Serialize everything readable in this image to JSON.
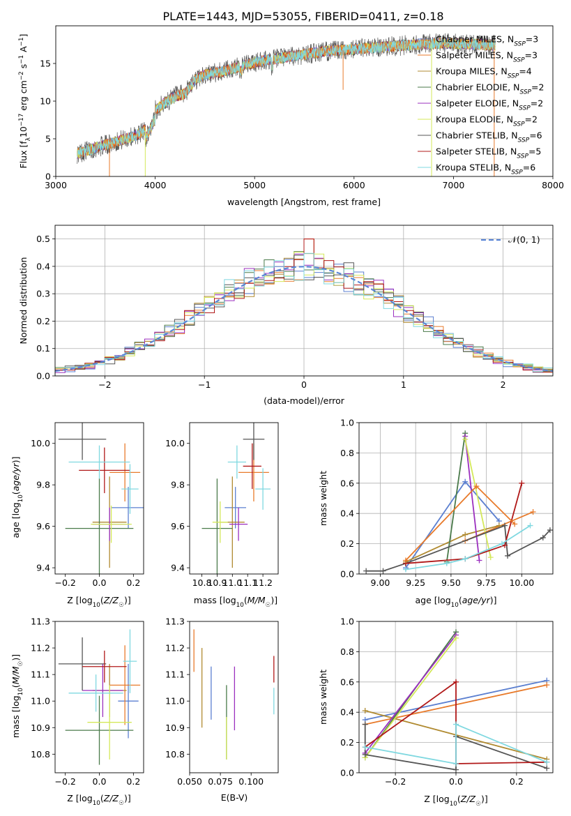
{
  "figure": {
    "title": "PLATE=1443, MJD=53055, FIBERID=0411, z=0.18"
  },
  "colors": {
    "Chabrier MILES": "#5b7fd0",
    "Salpeter MILES": "#e87a2a",
    "Kroupa MILES": "#b08a30",
    "Chabrier ELODIE": "#4a7a4a",
    "Salpeter ELODIE": "#9b2fbf",
    "Kroupa ELODIE": "#d4e85a",
    "Chabrier STELIB": "#555555",
    "Salpeter STELIB": "#b01818",
    "Kroupa STELIB": "#7fd8e0"
  },
  "models": [
    {
      "name": "Chabrier MILES",
      "nssp": 3,
      "label_pre": "Chabrier MILES, N",
      "label_post": "=3"
    },
    {
      "name": "Salpeter MILES",
      "nssp": 3,
      "label_pre": "Salpeter MILES, N",
      "label_post": "=3"
    },
    {
      "name": "Kroupa MILES",
      "nssp": 4,
      "label_pre": "Kroupa MILES, N",
      "label_post": "=4"
    },
    {
      "name": "Chabrier ELODIE",
      "nssp": 2,
      "label_pre": "Chabrier ELODIE, N",
      "label_post": "=2"
    },
    {
      "name": "Salpeter ELODIE",
      "nssp": 2,
      "label_pre": "Salpeter ELODIE, N",
      "label_post": "=2"
    },
    {
      "name": "Kroupa ELODIE",
      "nssp": 2,
      "label_pre": "Kroupa ELODIE, N",
      "label_post": "=2"
    },
    {
      "name": "Chabrier STELIB",
      "nssp": 6,
      "label_pre": "Chabrier STELIB, N",
      "label_post": "=6"
    },
    {
      "name": "Salpeter STELIB",
      "nssp": 5,
      "label_pre": "Salpeter STELIB, N",
      "label_post": "=5"
    },
    {
      "name": "Kroupa STELIB",
      "nssp": 6,
      "label_pre": "Kroupa STELIB, N",
      "label_post": "=6"
    }
  ],
  "chart_data": [
    {
      "id": "spectrum",
      "type": "line",
      "xlabel": "wavelength [Angstrom, rest frame]",
      "ylabel": "Flux [f_λ 10^-17 erg cm^-2 s^-1 A^-1]",
      "xlim": [
        3000,
        8000
      ],
      "ylim": [
        0,
        20
      ],
      "xticks": [
        3000,
        4000,
        5000,
        6000,
        7000,
        8000
      ],
      "yticks": [
        0,
        5,
        10,
        15
      ],
      "legend": "right",
      "grid": false,
      "continuum": {
        "x": [
          3210,
          3300,
          3400,
          3500,
          3600,
          3700,
          3800,
          3900,
          3950,
          4000,
          4100,
          4200,
          4300,
          4400,
          4500,
          4700,
          4900,
          5100,
          5300,
          5500,
          5700,
          5900,
          6100,
          6300,
          6500,
          6700,
          6900,
          7100,
          7300,
          7420
        ],
        "y": [
          3.0,
          3.4,
          3.8,
          4.2,
          4.6,
          5.0,
          5.4,
          6.2,
          7.5,
          8.8,
          9.8,
          10.6,
          11.0,
          12.8,
          13.5,
          14.0,
          14.8,
          15.4,
          15.8,
          16.2,
          16.6,
          16.8,
          17.0,
          17.2,
          17.4,
          17.6,
          17.7,
          17.6,
          17.5,
          17.4
        ]
      },
      "dips": [
        {
          "x": 3540,
          "y": 0,
          "series": "Salpeter MILES"
        },
        {
          "x": 3900,
          "y": 0,
          "series": "Kroupa ELODIE"
        },
        {
          "x": 5890,
          "y": 11.5,
          "series": "Salpeter MILES"
        },
        {
          "x": 6780,
          "y": 0,
          "series": "Kroupa ELODIE"
        },
        {
          "x": 7410,
          "y": 0,
          "series": "Salpeter MILES"
        }
      ]
    },
    {
      "id": "residuals",
      "type": "histogram",
      "xlabel": "(data-model)/error",
      "ylabel": "Normed distribution",
      "xlim": [
        -2.5,
        2.5
      ],
      "ylim": [
        0,
        0.55
      ],
      "xticks": [
        -2,
        -1,
        0,
        1,
        2
      ],
      "yticks": [
        0.0,
        0.1,
        0.2,
        0.3,
        0.4,
        0.5
      ],
      "grid": true,
      "legend": "top-right",
      "reference": {
        "name": "N(0,1)",
        "label": "𝒩(0, 1)",
        "mean": 0,
        "sigma": 1
      }
    },
    {
      "id": "age_vs_Z",
      "type": "errorbar",
      "xlabel": "Z [log10(Z/Z☉)]",
      "ylabel": "age [log10(age/yr)]",
      "xlim": [
        -0.26,
        0.26
      ],
      "ylim": [
        9.37,
        10.1
      ],
      "xticks": [
        -0.2,
        0.0,
        0.2
      ],
      "yticks": [
        9.4,
        9.6,
        9.8,
        10.0
      ],
      "points": [
        {
          "series": "Chabrier MILES",
          "x": 0.17,
          "y": 9.69,
          "xerr": 0.1,
          "yerr": 0.1
        },
        {
          "series": "Salpeter MILES",
          "x": 0.15,
          "y": 9.86,
          "xerr": 0.09,
          "yerr": 0.14
        },
        {
          "series": "Kroupa MILES",
          "x": 0.06,
          "y": 9.62,
          "xerr": 0.1,
          "yerr": 0.22
        },
        {
          "series": "Chabrier ELODIE",
          "x": 0.0,
          "y": 9.59,
          "xerr": 0.2,
          "yerr": 0.24
        },
        {
          "series": "Salpeter ELODIE",
          "x": 0.06,
          "y": 9.61,
          "xerr": 0.1,
          "yerr": 0.08
        },
        {
          "series": "Kroupa ELODIE",
          "x": 0.07,
          "y": 9.61,
          "xerr": 0.12,
          "yerr": 0.09
        },
        {
          "series": "Chabrier STELIB",
          "x": -0.1,
          "y": 10.02,
          "xerr": 0.14,
          "yerr": 0.1
        },
        {
          "series": "Salpeter STELIB",
          "x": 0.03,
          "y": 9.87,
          "xerr": 0.15,
          "yerr": 0.11
        },
        {
          "series": "Kroupa STELIB",
          "x": 0.0,
          "y": 9.91,
          "xerr": 0.18,
          "yerr": 0.08
        },
        {
          "series": "Kroupa STELIB",
          "x": 0.18,
          "y": 9.78,
          "xerr": 0.05,
          "yerr": 0.12
        }
      ]
    },
    {
      "id": "age_vs_mass",
      "type": "errorbar",
      "xlabel": "mass [log10(M/M☉)]",
      "ylabel": "",
      "xlim": [
        10.72,
        11.3
      ],
      "ylim": [
        9.37,
        10.1
      ],
      "xticks": [
        10.8,
        10.9,
        11.0,
        11.1,
        11.2
      ],
      "yticks": [
        9.4,
        9.6,
        9.8,
        10.0
      ],
      "points": [
        {
          "series": "Chabrier MILES",
          "x": 11.02,
          "y": 9.69,
          "xerr": 0.07,
          "yerr": 0.1
        },
        {
          "series": "Salpeter MILES",
          "x": 11.14,
          "y": 9.86,
          "xerr": 0.1,
          "yerr": 0.14
        },
        {
          "series": "Kroupa MILES",
          "x": 11.0,
          "y": 9.62,
          "xerr": 0.08,
          "yerr": 0.22
        },
        {
          "series": "Chabrier ELODIE",
          "x": 10.9,
          "y": 9.59,
          "xerr": 0.1,
          "yerr": 0.24
        },
        {
          "series": "Salpeter ELODIE",
          "x": 11.04,
          "y": 9.61,
          "xerr": 0.06,
          "yerr": 0.08
        },
        {
          "series": "Kroupa ELODIE",
          "x": 10.92,
          "y": 9.62,
          "xerr": 0.05,
          "yerr": 0.1
        },
        {
          "series": "Chabrier STELIB",
          "x": 11.14,
          "y": 10.02,
          "xerr": 0.07,
          "yerr": 0.1
        },
        {
          "series": "Salpeter STELIB",
          "x": 11.13,
          "y": 9.89,
          "xerr": 0.06,
          "yerr": 0.11
        },
        {
          "series": "Kroupa STELIB",
          "x": 11.03,
          "y": 9.91,
          "xerr": 0.06,
          "yerr": 0.08
        },
        {
          "series": "Kroupa STELIB",
          "x": 11.2,
          "y": 9.78,
          "xerr": 0.05,
          "yerr": 0.1
        }
      ]
    },
    {
      "id": "weight_vs_age",
      "type": "line",
      "xlabel": "age [log10(age/yr)]",
      "ylabel": "mass weight",
      "xlim": [
        8.85,
        10.22
      ],
      "ylim": [
        0,
        1.0
      ],
      "xticks": [
        9.0,
        9.25,
        9.5,
        9.75,
        10.0
      ],
      "yticks": [
        0.0,
        0.2,
        0.4,
        0.6,
        0.8,
        1.0
      ],
      "grid": true,
      "series": [
        {
          "name": "Chabrier MILES",
          "x": [
            9.18,
            9.6,
            9.84
          ],
          "y": [
            0.04,
            0.61,
            0.35
          ]
        },
        {
          "name": "Salpeter MILES",
          "x": [
            9.6,
            10.08
          ],
          "y": [
            0.22,
            0.41
          ]
        },
        {
          "name": "Kroupa MILES",
          "x": [
            9.18,
            9.6,
            9.84
          ],
          "y": [
            0.08,
            0.26,
            0.32
          ]
        },
        {
          "name": "Chabrier ELODIE",
          "x": [
            9.47,
            9.6
          ],
          "y": [
            0.08,
            0.93
          ]
        },
        {
          "name": "Salpeter ELODIE",
          "x": [
            9.6,
            9.7
          ],
          "y": [
            0.91,
            0.09
          ]
        },
        {
          "name": "Kroupa ELODIE",
          "x": [
            9.6,
            9.78
          ],
          "y": [
            0.89,
            0.11
          ]
        },
        {
          "name": "Chabrier STELIB",
          "x": [
            8.9,
            9.02,
            9.18,
            9.88,
            9.9,
            10.15,
            10.2
          ],
          "y": [
            0.02,
            0.02,
            0.07,
            0.32,
            0.12,
            0.24,
            0.29
          ]
        },
        {
          "name": "Salpeter STELIB",
          "x": [
            9.18,
            9.6,
            9.88,
            10.0
          ],
          "y": [
            0.07,
            0.1,
            0.19,
            0.6
          ]
        },
        {
          "name": "Kroupa STELIB",
          "x": [
            9.18,
            9.47,
            9.6,
            9.86,
            10.06
          ],
          "y": [
            0.03,
            0.07,
            0.1,
            0.2,
            0.32
          ]
        },
        {
          "name": "Salpeter MILES",
          "x": [
            9.18,
            9.68,
            9.95
          ],
          "y": [
            0.09,
            0.58,
            0.33
          ]
        }
      ]
    },
    {
      "id": "mass_vs_Z",
      "type": "errorbar",
      "xlabel": "Z [log10(Z/Z☉)]",
      "ylabel": "mass [log10(M/M☉)]",
      "xlim": [
        -0.26,
        0.26
      ],
      "ylim": [
        10.73,
        11.3
      ],
      "xticks": [
        -0.2,
        0.0,
        0.2
      ],
      "yticks": [
        10.8,
        10.9,
        11.0,
        11.1,
        11.2,
        11.3
      ],
      "points": [
        {
          "series": "Chabrier MILES",
          "x": 0.17,
          "y": 11.0,
          "xerr": 0.06,
          "yerr": 0.14
        },
        {
          "series": "Salpeter MILES",
          "x": 0.15,
          "y": 11.06,
          "xerr": 0.09,
          "yerr": 0.15
        },
        {
          "series": "Kroupa MILES",
          "x": 0.06,
          "y": 11.04,
          "xerr": 0.1,
          "yerr": 0.1
        },
        {
          "series": "Chabrier ELODIE",
          "x": 0.0,
          "y": 10.89,
          "xerr": 0.2,
          "yerr": 0.13
        },
        {
          "series": "Salpeter ELODIE",
          "x": 0.02,
          "y": 11.04,
          "xerr": 0.12,
          "yerr": 0.1
        },
        {
          "series": "Kroupa ELODIE",
          "x": 0.06,
          "y": 10.92,
          "xerr": 0.13,
          "yerr": 0.14
        },
        {
          "series": "Chabrier STELIB",
          "x": -0.1,
          "y": 11.14,
          "xerr": 0.14,
          "yerr": 0.1
        },
        {
          "series": "Salpeter STELIB",
          "x": 0.03,
          "y": 11.13,
          "xerr": 0.13,
          "yerr": 0.06
        },
        {
          "series": "Kroupa STELIB",
          "x": -0.02,
          "y": 11.03,
          "xerr": 0.16,
          "yerr": 0.07
        },
        {
          "series": "Kroupa STELIB",
          "x": 0.18,
          "y": 11.15,
          "xerr": 0.04,
          "yerr": 0.12
        }
      ]
    },
    {
      "id": "mass_vs_ebv",
      "type": "errorbar",
      "xlabel": "E(B-V)",
      "ylabel": "",
      "xlim": [
        0.05,
        0.122
      ],
      "ylim": [
        10.73,
        11.3
      ],
      "xticks": [
        0.05,
        0.075,
        0.1
      ],
      "xticklabels": [
        "0.050",
        "0.075",
        "0.100"
      ],
      "yticks": [
        10.8,
        10.9,
        11.0,
        11.1,
        11.2,
        11.3
      ],
      "points": [
        {
          "series": "Salpeter MILES",
          "x": 0.0535,
          "y": 11.19,
          "xerr": 0,
          "yerr": 0.08
        },
        {
          "series": "Kroupa MILES",
          "x": 0.06,
          "y": 11.05,
          "xerr": 0,
          "yerr": 0.15
        },
        {
          "series": "Chabrier MILES",
          "x": 0.0675,
          "y": 11.03,
          "xerr": 0,
          "yerr": 0.1
        },
        {
          "series": "Chabrier ELODIE",
          "x": 0.08,
          "y": 10.92,
          "xerr": 0,
          "yerr": 0.14
        },
        {
          "series": "Kroupa ELODIE",
          "x": 0.08,
          "y": 10.86,
          "xerr": 0,
          "yerr": 0.08
        },
        {
          "series": "Salpeter ELODIE",
          "x": 0.0865,
          "y": 11.01,
          "xerr": 0,
          "yerr": 0.12
        },
        {
          "series": "Salpeter STELIB",
          "x": 0.1185,
          "y": 11.12,
          "xerr": 0,
          "yerr": 0.05
        },
        {
          "series": "Kroupa STELIB",
          "x": 0.1185,
          "y": 11.0,
          "xerr": 0,
          "yerr": 0.05
        }
      ]
    },
    {
      "id": "weight_vs_Z",
      "type": "line",
      "xlabel": "Z [log10(Z/Z☉)]",
      "ylabel": "mass weight",
      "xlim": [
        -0.32,
        0.32
      ],
      "ylim": [
        0,
        1.0
      ],
      "xticks": [
        -0.2,
        0.0,
        0.2
      ],
      "yticks": [
        0.0,
        0.2,
        0.4,
        0.6,
        0.8,
        1.0
      ],
      "grid": true,
      "series": [
        {
          "name": "Chabrier MILES",
          "x": [
            -0.3,
            0.3
          ],
          "y": [
            0.35,
            0.61
          ]
        },
        {
          "name": "Salpeter MILES",
          "x": [
            -0.3,
            0.3
          ],
          "y": [
            0.32,
            0.58
          ]
        },
        {
          "name": "Kroupa MILES",
          "x": [
            -0.3,
            0.3
          ],
          "y": [
            0.41,
            0.09
          ]
        },
        {
          "name": "Chabrier ELODIE",
          "x": [
            -0.3,
            0.0
          ],
          "y": [
            0.1,
            0.93
          ]
        },
        {
          "name": "Salpeter ELODIE",
          "x": [
            -0.3,
            0.0
          ],
          "y": [
            0.13,
            0.91
          ]
        },
        {
          "name": "Kroupa ELODIE",
          "x": [
            -0.3,
            0.0
          ],
          "y": [
            0.1,
            0.89
          ]
        },
        {
          "name": "Chabrier STELIB",
          "x": [
            -0.3,
            -0.3,
            0.0,
            0.0,
            0.3
          ],
          "y": [
            0.32,
            0.12,
            0.02,
            0.24,
            0.03
          ]
        },
        {
          "name": "Salpeter STELIB",
          "x": [
            -0.3,
            0.0,
            0.0,
            0.3
          ],
          "y": [
            0.17,
            0.6,
            0.06,
            0.07
          ]
        },
        {
          "name": "Kroupa STELIB",
          "x": [
            -0.3,
            0.0,
            0.0,
            0.3
          ],
          "y": [
            0.17,
            0.06,
            0.32,
            0.07
          ]
        }
      ]
    }
  ]
}
